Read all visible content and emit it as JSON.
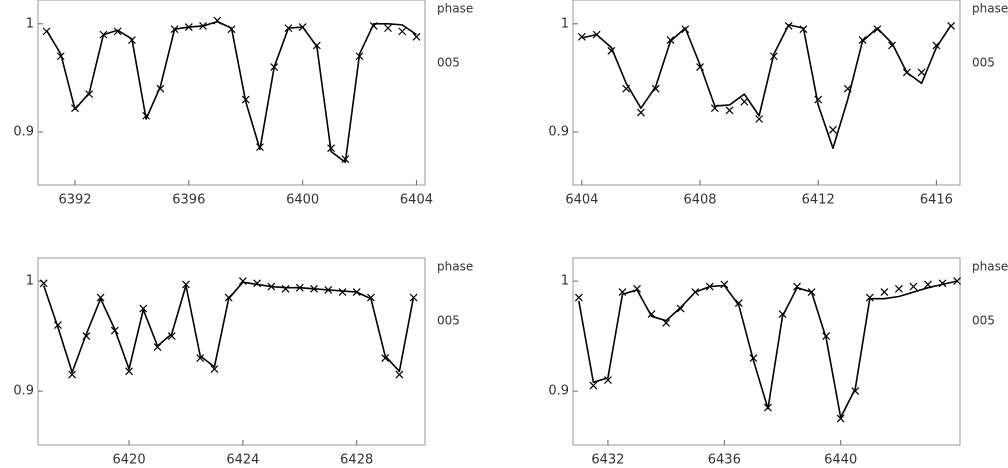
{
  "chart_data": [
    {
      "type": "line",
      "annotations": [
        "phase",
        "005"
      ],
      "x": [
        6391,
        6391.5,
        6392,
        6392.5,
        6393,
        6393.5,
        6394,
        6394.5,
        6395,
        6395.5,
        6396,
        6396.5,
        6397,
        6397.5,
        6398,
        6398.5,
        6399,
        6399.5,
        6400,
        6400.5,
        6401,
        6401.5,
        6402,
        6402.5,
        6403,
        6403.5,
        6404
      ],
      "series": [
        {
          "marker": "none",
          "color": "#000000",
          "values": [
            0.994,
            0.972,
            0.921,
            0.936,
            0.99,
            0.994,
            0.986,
            0.912,
            0.942,
            0.995,
            0.997,
            0.998,
            1.002,
            0.996,
            0.928,
            0.884,
            0.96,
            0.996,
            0.997,
            0.979,
            0.882,
            0.872,
            0.972,
            1.0,
            1.0,
            0.999,
            0.99
          ]
        },
        {
          "marker": "x",
          "color": "#000000",
          "values": [
            0.993,
            0.97,
            0.922,
            0.935,
            0.99,
            0.993,
            0.985,
            0.915,
            0.94,
            0.995,
            0.997,
            0.998,
            1.003,
            0.995,
            0.93,
            0.886,
            0.96,
            0.996,
            0.997,
            0.98,
            0.885,
            0.875,
            0.97,
            0.998,
            0.996,
            0.993,
            0.988
          ]
        }
      ],
      "xlim": [
        6390.7,
        6404.3
      ],
      "xticks": [
        6392,
        6396,
        6400,
        6404
      ],
      "ylim": [
        0.851,
        1.022
      ],
      "yticks": [
        0.9,
        1
      ]
    },
    {
      "type": "line",
      "annotations": [
        "phase",
        "005"
      ],
      "x": [
        6404,
        6404.5,
        6405,
        6405.5,
        6406,
        6406.5,
        6407,
        6407.5,
        6408,
        6408.5,
        6409,
        6409.5,
        6410,
        6410.5,
        6411,
        6411.5,
        6412,
        6412.5,
        6413,
        6413.5,
        6414,
        6414.5,
        6415,
        6415.5,
        6416,
        6416.5
      ],
      "series": [
        {
          "marker": "none",
          "color": "#000000",
          "values": [
            0.987,
            0.99,
            0.978,
            0.945,
            0.922,
            0.942,
            0.984,
            0.996,
            0.962,
            0.924,
            0.925,
            0.935,
            0.915,
            0.972,
            0.999,
            0.996,
            0.925,
            0.885,
            0.93,
            0.984,
            0.996,
            0.982,
            0.955,
            0.945,
            0.978,
            0.999
          ]
        },
        {
          "marker": "x",
          "color": "#000000",
          "values": [
            0.988,
            0.99,
            0.975,
            0.94,
            0.918,
            0.94,
            0.985,
            0.995,
            0.96,
            0.922,
            0.92,
            0.928,
            0.912,
            0.97,
            0.998,
            0.995,
            0.93,
            0.902,
            0.94,
            0.985,
            0.995,
            0.98,
            0.955,
            0.955,
            0.98,
            0.998
          ]
        }
      ],
      "xlim": [
        6403.7,
        6416.8
      ],
      "xticks": [
        6404,
        6408,
        6412,
        6416
      ],
      "ylim": [
        0.851,
        1.022
      ],
      "yticks": [
        0.9,
        1
      ]
    },
    {
      "type": "line",
      "annotations": [
        "phase",
        "005"
      ],
      "x": [
        6417,
        6417.5,
        6418,
        6418.5,
        6419,
        6419.5,
        6420,
        6420.5,
        6421,
        6421.5,
        6422,
        6422.5,
        6423,
        6423.5,
        6424,
        6424.5,
        6425,
        6425.5,
        6426,
        6426.5,
        6427,
        6427.5,
        6428,
        6428.5,
        6429,
        6429.5,
        6430
      ],
      "series": [
        {
          "marker": "none",
          "color": "#000000",
          "values": [
            0.996,
            0.958,
            0.917,
            0.952,
            0.984,
            0.956,
            0.92,
            0.974,
            0.941,
            0.952,
            0.996,
            0.932,
            0.922,
            0.984,
            0.999,
            0.997,
            0.995,
            0.994,
            0.994,
            0.993,
            0.992,
            0.991,
            0.99,
            0.984,
            0.932,
            0.918,
            0.986
          ]
        },
        {
          "marker": "x",
          "color": "#000000",
          "values": [
            0.998,
            0.96,
            0.915,
            0.95,
            0.985,
            0.955,
            0.918,
            0.975,
            0.94,
            0.95,
            0.997,
            0.93,
            0.92,
            0.985,
            1.0,
            0.998,
            0.995,
            0.993,
            0.994,
            0.993,
            0.992,
            0.99,
            0.99,
            0.985,
            0.93,
            0.915,
            0.985
          ]
        }
      ],
      "xlim": [
        6416.8,
        6430.4
      ],
      "xticks": [
        6420,
        6424,
        6428
      ],
      "ylim": [
        0.851,
        1.021
      ],
      "yticks": [
        0.9,
        1
      ]
    },
    {
      "type": "line",
      "annotations": [
        "phase",
        "005"
      ],
      "x": [
        6431,
        6431.5,
        6432,
        6432.5,
        6433,
        6433.5,
        6434,
        6434.5,
        6435,
        6435.5,
        6436,
        6436.5,
        6437,
        6437.5,
        6438,
        6438.5,
        6439,
        6439.5,
        6440,
        6440.5,
        6441,
        6441.5,
        6442,
        6442.5,
        6443,
        6443.5,
        6444
      ],
      "series": [
        {
          "marker": "none",
          "color": "#000000",
          "values": [
            0.982,
            0.908,
            0.912,
            0.988,
            0.992,
            0.968,
            0.964,
            0.976,
            0.99,
            0.995,
            0.996,
            0.978,
            0.928,
            0.884,
            0.968,
            0.994,
            0.99,
            0.948,
            0.876,
            0.902,
            0.984,
            0.984,
            0.986,
            0.99,
            0.994,
            0.997,
            1.0
          ]
        },
        {
          "marker": "x",
          "color": "#000000",
          "values": [
            0.985,
            0.905,
            0.91,
            0.99,
            0.993,
            0.97,
            0.962,
            0.975,
            0.99,
            0.995,
            0.997,
            0.98,
            0.93,
            0.885,
            0.97,
            0.995,
            0.99,
            0.95,
            0.875,
            0.9,
            0.985,
            0.99,
            0.993,
            0.995,
            0.997,
            0.998,
            1.0
          ]
        }
      ],
      "xlim": [
        6430.8,
        6444.1
      ],
      "xticks": [
        6432,
        6436,
        6440
      ],
      "ylim": [
        0.851,
        1.021
      ],
      "yticks": [
        0.9,
        1
      ]
    }
  ]
}
